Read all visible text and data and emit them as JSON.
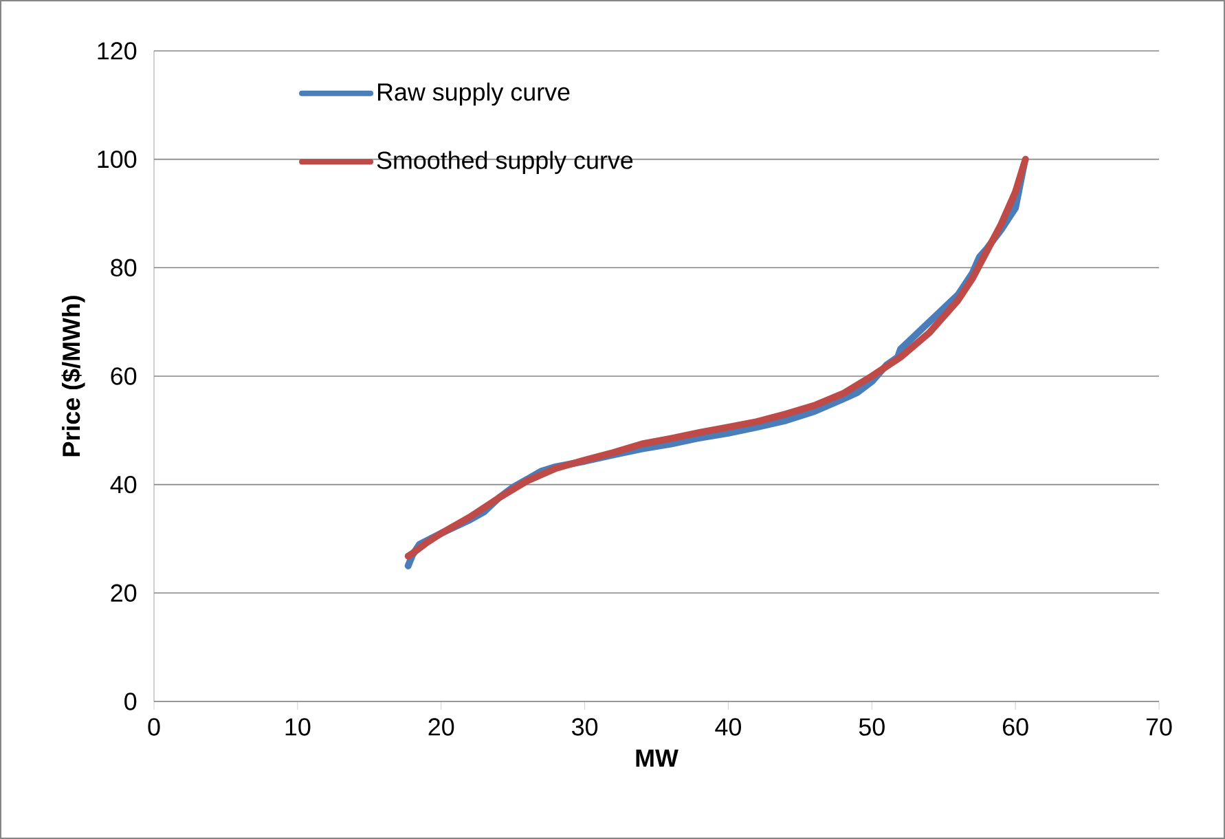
{
  "chart_data": {
    "type": "line",
    "xlabel": "MW",
    "ylabel": "Price ($/MWh)",
    "xlim": [
      0,
      70
    ],
    "xticks": [
      0,
      10,
      20,
      30,
      40,
      50,
      60,
      70
    ],
    "ylim": [
      0,
      120
    ],
    "yticks": [
      0,
      20,
      40,
      60,
      80,
      100,
      120
    ],
    "grid": "y",
    "legend": "top left",
    "series": [
      {
        "name": "Raw supply curve",
        "color": "#4a7ebb",
        "x": [
          17.7,
          18,
          18.5,
          20,
          22,
          23,
          24,
          25,
          26,
          27,
          28,
          30,
          32,
          34,
          36,
          38,
          40,
          42,
          44,
          46,
          48,
          49,
          50,
          51,
          51.8,
          52,
          53,
          54,
          55,
          56,
          57,
          57.5,
          58,
          59,
          59.5,
          60,
          60.3,
          60.6
        ],
        "values": [
          25,
          27,
          29,
          31,
          33.5,
          35,
          37.5,
          39.5,
          41,
          42.5,
          43.3,
          44.3,
          45.5,
          46.6,
          47.5,
          48.6,
          49.5,
          50.6,
          51.8,
          53.5,
          55.8,
          57,
          59,
          62,
          63.5,
          65,
          67.5,
          70,
          72.5,
          75,
          79,
          82,
          83.5,
          87,
          89,
          91,
          95,
          99
        ]
      },
      {
        "name": "Smoothed supply curve",
        "color": "#be4b48",
        "x": [
          17.7,
          18,
          19,
          20,
          22,
          24,
          26,
          28,
          30,
          32,
          34,
          36,
          38,
          40,
          42,
          44,
          46,
          48,
          50,
          52,
          54,
          56,
          57,
          58,
          59,
          60,
          60.7
        ],
        "values": [
          26.8,
          27.3,
          29.3,
          31,
          34,
          37.5,
          40.7,
          43,
          44.5,
          45.9,
          47.5,
          48.5,
          49.6,
          50.6,
          51.6,
          53,
          54.6,
          56.8,
          60,
          63.5,
          68,
          74,
          78,
          83,
          88,
          94,
          100
        ]
      }
    ]
  }
}
